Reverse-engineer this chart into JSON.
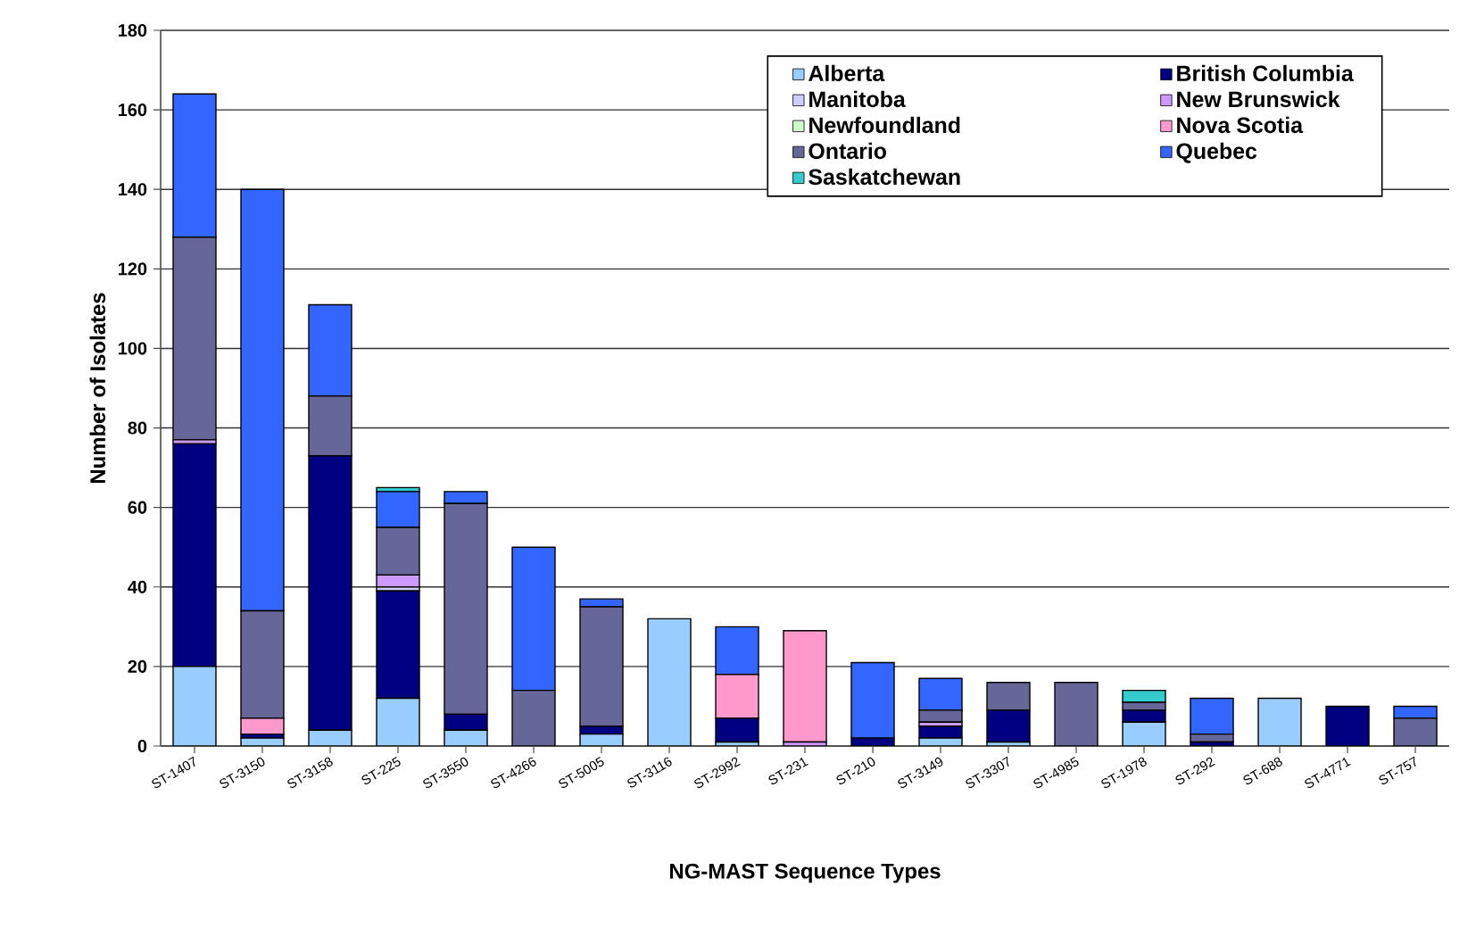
{
  "chart_data": {
    "type": "bar",
    "stacked": true,
    "xlabel": "NG-MAST Sequence Types",
    "ylabel": "Number of Isolates",
    "categories": [
      "ST-1407",
      "ST-3150",
      "ST-3158",
      "ST-225",
      "ST-3550",
      "ST-4266",
      "ST-5005",
      "ST-3116",
      "ST-2992",
      "ST-231",
      "ST-210",
      "ST-3149",
      "ST-3307",
      "ST-4985",
      "ST-1978",
      "ST-292",
      "ST-688",
      "ST-4771",
      "ST-757"
    ],
    "series": [
      {
        "name": "Alberta",
        "color": "#99ccff",
        "values": [
          20,
          2,
          4,
          12,
          4,
          0,
          3,
          32,
          1,
          0,
          0,
          2,
          1,
          0,
          6,
          0,
          12,
          0,
          0
        ]
      },
      {
        "name": "British Columbia",
        "color": "#000080",
        "values": [
          56,
          1,
          69,
          27,
          4,
          0,
          2,
          0,
          6,
          0,
          2,
          3,
          8,
          0,
          3,
          1,
          0,
          10,
          0
        ]
      },
      {
        "name": "Manitoba",
        "color": "#ccccff",
        "values": [
          0,
          0,
          0,
          1,
          0,
          0,
          0,
          0,
          0,
          0,
          0,
          0,
          0,
          0,
          0,
          0,
          0,
          0,
          0
        ]
      },
      {
        "name": "New Brunswick",
        "color": "#cc99ff",
        "values": [
          1,
          0,
          0,
          3,
          0,
          0,
          0,
          0,
          0,
          1,
          0,
          1,
          0,
          0,
          0,
          0,
          0,
          0,
          0
        ]
      },
      {
        "name": "Newfoundland",
        "color": "#ccffcc",
        "values": [
          0,
          0,
          0,
          0,
          0,
          0,
          0,
          0,
          0,
          0,
          0,
          0,
          0,
          0,
          0,
          0,
          0,
          0,
          0
        ]
      },
      {
        "name": "Nova Scotia",
        "color": "#ff99cc",
        "values": [
          0,
          4,
          0,
          0,
          0,
          0,
          0,
          0,
          11,
          28,
          0,
          0,
          0,
          0,
          0,
          0,
          0,
          0,
          0
        ]
      },
      {
        "name": "Ontario",
        "color": "#666699",
        "values": [
          51,
          27,
          15,
          12,
          53,
          14,
          30,
          0,
          0,
          0,
          0,
          3,
          7,
          16,
          2,
          2,
          0,
          0,
          7
        ]
      },
      {
        "name": "Quebec",
        "color": "#3366ff",
        "values": [
          36,
          106,
          23,
          9,
          3,
          36,
          2,
          0,
          12,
          0,
          19,
          8,
          0,
          0,
          0,
          9,
          0,
          0,
          3
        ]
      },
      {
        "name": "Saskatchewan",
        "color": "#33cccc",
        "values": [
          0,
          0,
          0,
          1,
          0,
          0,
          0,
          0,
          0,
          0,
          0,
          0,
          0,
          0,
          3,
          0,
          0,
          0,
          0
        ]
      }
    ],
    "ylim": [
      0,
      180
    ],
    "yticks": [
      0,
      20,
      40,
      60,
      80,
      100,
      120,
      140,
      160,
      180
    ],
    "grid": "y",
    "legend": "top right"
  }
}
